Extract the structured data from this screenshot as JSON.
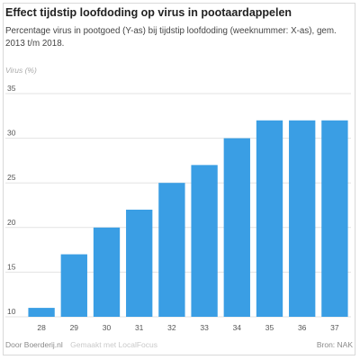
{
  "chart_data": {
    "type": "bar",
    "title": "Effect tijdstip loofdoding op virus in pootaardappelen",
    "subtitle": "Percentage virus in pootgoed (Y-as) bij tijdstip loofdoding (weeknummer: X-as), gem. 2013 t/m 2018.",
    "ylabel": "Virus (%)",
    "xlabel": "",
    "categories": [
      "28",
      "29",
      "30",
      "31",
      "32",
      "33",
      "34",
      "35",
      "36",
      "37"
    ],
    "values": [
      11,
      17,
      20,
      22,
      25,
      27,
      30,
      32,
      32,
      32
    ],
    "yticks": [
      10,
      15,
      20,
      25,
      30,
      35
    ],
    "ylim": [
      10,
      35
    ],
    "grid": true,
    "bar_color": "#3a9ee4",
    "grid_color": "#e3e3e3"
  },
  "footer": {
    "credit": "Door Boerderij.nl",
    "made_with": "Gemaakt met LocalFocus",
    "source": "Bron: NAK"
  }
}
